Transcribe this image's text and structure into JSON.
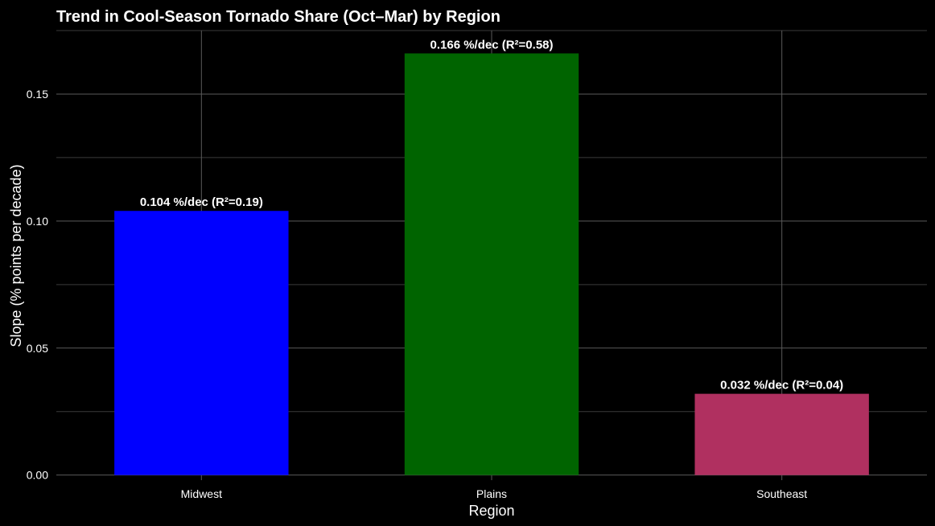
{
  "chart_data": {
    "type": "bar",
    "title": "Trend in Cool-Season Tornado Share (Oct–Mar) by Region",
    "xlabel": "Region",
    "ylabel": "Slope (% points per decade)",
    "categories": [
      "Midwest",
      "Plains",
      "Southeast"
    ],
    "values": [
      0.104,
      0.166,
      0.032
    ],
    "bar_labels": [
      "0.104 %/dec (R²=0.19)",
      "0.166 %/dec (R²=0.58)",
      "0.032 %/dec (R²=0.04)"
    ],
    "bar_colors": [
      "#0000ff",
      "#006400",
      "#b03060"
    ],
    "yticks": [
      0.0,
      0.05,
      0.1,
      0.15
    ],
    "ytick_labels": [
      "0.00",
      "0.05",
      "0.10",
      "0.15"
    ],
    "ylim": [
      -0.002,
      0.175
    ],
    "grid": true,
    "background": "#000000"
  }
}
